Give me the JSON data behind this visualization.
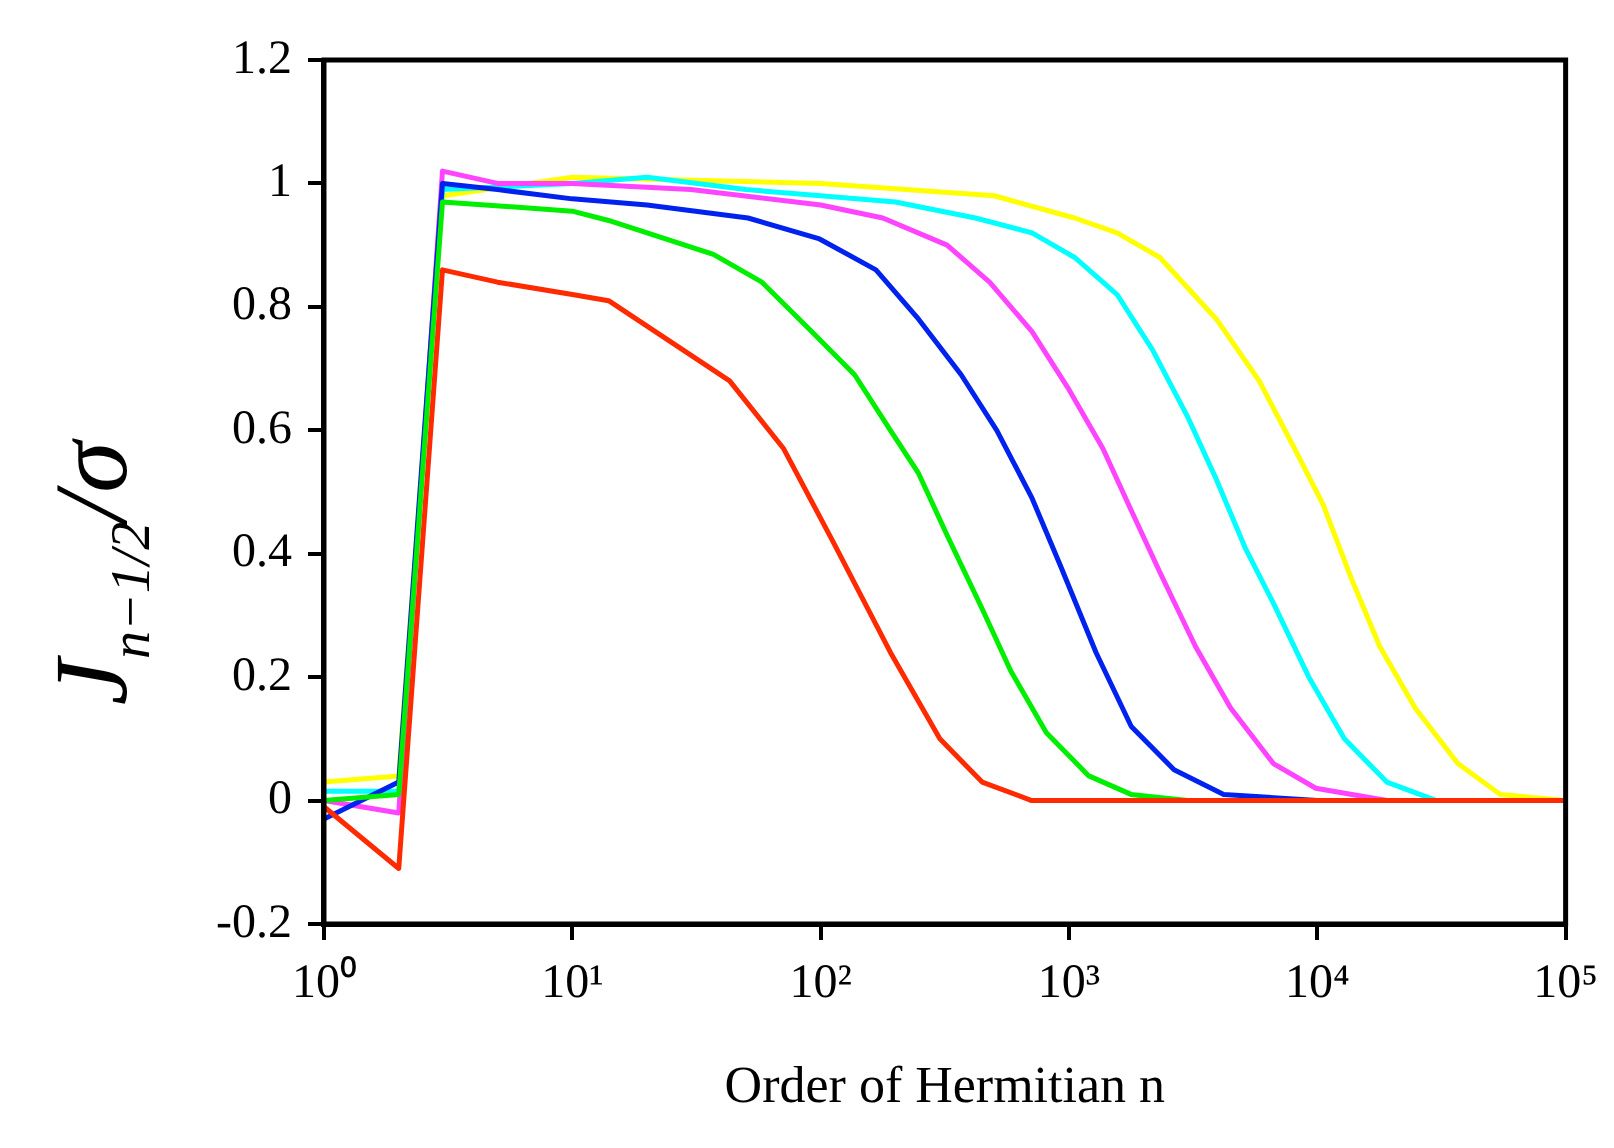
{
  "chart_data": {
    "type": "line",
    "xlabel": "Order of Hermitian n",
    "ylabel": "J$_{n−1/2}$/σ",
    "log": "x",
    "marker": "none",
    "xlim": [
      1,
      100000
    ],
    "ylim": [
      -0.2,
      1.2
    ],
    "xticks": [
      {
        "value": 1,
        "label": "10⁰"
      },
      {
        "value": 10,
        "label": "10¹"
      },
      {
        "value": 100,
        "label": "10²"
      },
      {
        "value": 1000,
        "label": "10³"
      },
      {
        "value": 10000,
        "label": "10⁴"
      },
      {
        "value": 100000,
        "label": "10⁵"
      }
    ],
    "yticks": [
      -0.2,
      0,
      0.2,
      0.4,
      0.6,
      0.8,
      1,
      1.2
    ],
    "series": [
      {
        "color": "#ff2a00",
        "x": [
          1,
          2,
          3,
          5,
          10,
          14,
          43,
          71,
          112,
          191,
          302,
          447,
          708,
          1000,
          100000
        ],
        "values": [
          -0.01,
          -0.11,
          0.86,
          0.84,
          0.82,
          0.81,
          0.68,
          0.57,
          0.42,
          0.24,
          0.1,
          0.03,
          0,
          0,
          0
        ]
      },
      {
        "color": "#00ee00",
        "x": [
          1,
          2,
          3,
          10,
          14,
          37,
          58,
          92,
          137,
          191,
          248,
          323,
          448,
          583,
          811,
          1202,
          1778,
          3000,
          100000
        ],
        "values": [
          0,
          0.01,
          0.97,
          0.955,
          0.94,
          0.885,
          0.84,
          0.76,
          0.69,
          0.6,
          0.53,
          0.43,
          0.31,
          0.21,
          0.11,
          0.04,
          0.01,
          0,
          0
        ]
      },
      {
        "color": "#0022ee",
        "x": [
          1,
          2,
          3,
          5,
          10,
          20,
          51,
          99,
          167,
          248,
          368,
          512,
          710,
          925,
          1285,
          1782,
          2649,
          4198,
          10000,
          100000
        ],
        "values": [
          -0.03,
          0.03,
          1,
          0.99,
          0.975,
          0.965,
          0.944,
          0.91,
          0.86,
          0.78,
          0.69,
          0.6,
          0.49,
          0.38,
          0.24,
          0.12,
          0.05,
          0.01,
          0,
          0
        ]
      },
      {
        "color": "#ff44ff",
        "x": [
          1,
          2,
          3,
          5,
          10,
          30,
          100,
          178,
          323,
          479,
          710,
          986,
          1371,
          1782,
          2323,
          3228,
          4477,
          6653,
          9863,
          19055,
          100000
        ],
        "values": [
          0,
          -0.02,
          1.02,
          1,
          1,
          0.99,
          0.965,
          0.944,
          0.9,
          0.84,
          0.76,
          0.67,
          0.57,
          0.47,
          0.37,
          0.25,
          0.15,
          0.06,
          0.02,
          0,
          0
        ]
      },
      {
        "color": "#00ffff",
        "x": [
          1,
          2,
          3,
          10,
          20,
          50,
          100,
          200,
          420,
          710,
          1054,
          1563,
          2173,
          3020,
          3926,
          5117,
          6653,
          9247,
          12853,
          19055,
          30200,
          100000
        ],
        "values": [
          0.015,
          0.015,
          0.99,
          1,
          1.01,
          0.99,
          0.98,
          0.97,
          0.944,
          0.92,
          0.88,
          0.82,
          0.73,
          0.62,
          0.52,
          0.41,
          0.32,
          0.2,
          0.1,
          0.03,
          0,
          0
        ]
      },
      {
        "color": "#ffff00",
        "x": [
          1,
          2,
          3,
          10,
          100,
          500,
          1054,
          1563,
          2323,
          3926,
          5834,
          8110,
          10544,
          13709,
          17824,
          24774,
          36813,
          54576,
          100000
        ],
        "values": [
          0.03,
          0.04,
          0.98,
          1.01,
          1,
          0.98,
          0.944,
          0.92,
          0.88,
          0.78,
          0.68,
          0.57,
          0.48,
          0.36,
          0.25,
          0.15,
          0.06,
          0.01,
          0
        ]
      }
    ]
  }
}
